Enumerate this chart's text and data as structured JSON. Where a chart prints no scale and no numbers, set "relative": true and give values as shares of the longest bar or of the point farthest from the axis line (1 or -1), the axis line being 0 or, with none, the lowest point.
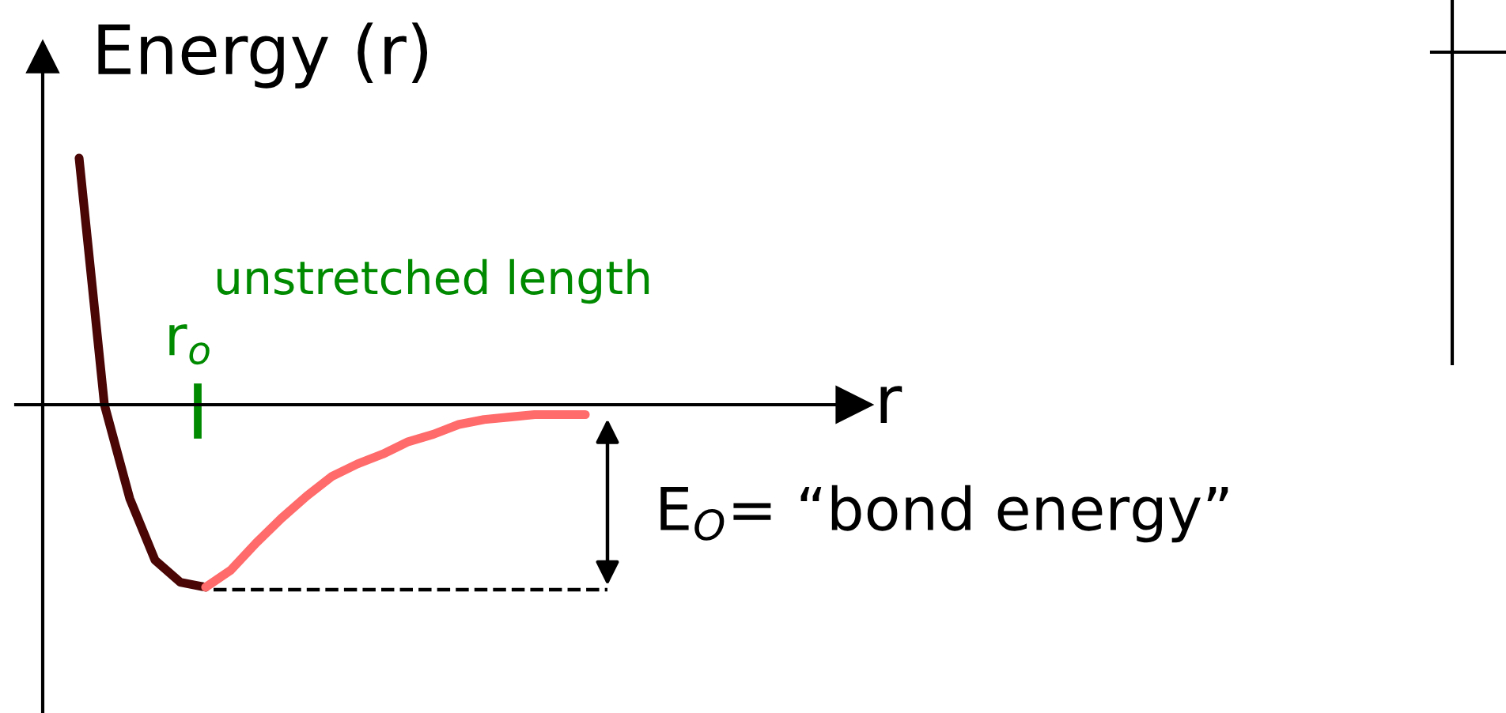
{
  "chart_data": {
    "type": "line",
    "relative": true,
    "xlabel": "r",
    "ylabel": "Energy (r)",
    "categories": [
      null,
      null,
      null,
      null,
      null,
      null,
      null,
      null,
      null,
      null,
      null,
      null,
      null,
      null,
      null,
      null,
      null,
      null,
      null,
      null,
      null
    ],
    "series": [
      {
        "color": "#4a0505",
        "values": [
          1.0,
          0.0,
          -0.38,
          -0.63,
          -0.72,
          -0.74,
          null,
          null,
          null,
          null,
          null,
          null,
          null,
          null,
          null,
          null,
          null,
          null,
          null,
          null,
          null
        ]
      },
      {
        "color": "#ff6a6a",
        "values": [
          null,
          null,
          null,
          null,
          null,
          -0.74,
          -0.67,
          -0.56,
          -0.46,
          -0.37,
          -0.29,
          -0.24,
          -0.2,
          -0.15,
          -0.12,
          -0.08,
          -0.06,
          -0.05,
          -0.04,
          -0.04,
          -0.04
        ]
      }
    ],
    "ref_lines": [
      {
        "axis": "y",
        "value": -0.75,
        "color": "#000000",
        "line_style": "dashed"
      }
    ],
    "annotations": [
      "unstretched length",
      "r$_{o}$",
      "E$_{O}$= “bond energy”"
    ],
    "marker": "none",
    "line_style": "solid"
  }
}
